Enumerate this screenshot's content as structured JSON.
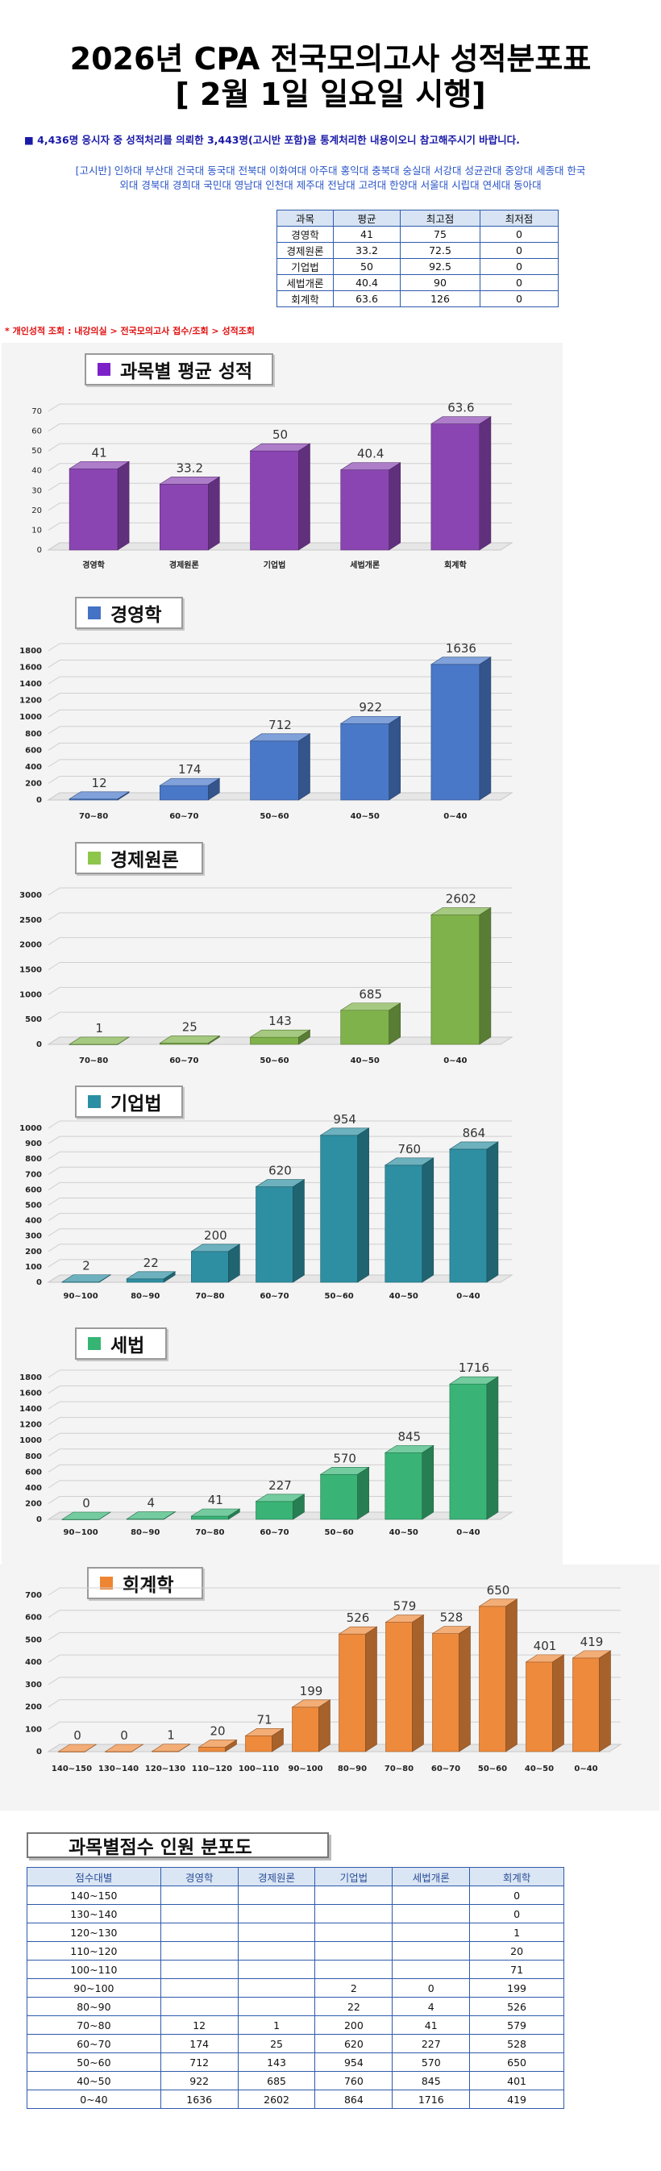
{
  "header": {
    "title_line1": "2026년 CPA 전국모의고사 성적분포표",
    "title_line2": "[ 2월 1일 일요일 시행]",
    "notice": "■ 4,436명 응시자 중 성적처리를 의뢰한 3,443명(고시반 포함)을 통계처리한 내용이오니 참고해주시기 바랍니다.",
    "univ_line1": "[고시반] 인하대 부산대 건국대 동국대 전북대 이화여대 아주대 홍익대 충북대 숭실대 서강대 성균관대 중앙대 세종대 한국",
    "univ_line2": "외대 경북대 경희대 국민대 영남대 인천대 제주대 전남대 고려대 한양대 서울대 시립대 연세대 동아대"
  },
  "summary": {
    "headers": [
      "과목",
      "평균",
      "최고점",
      "최저점"
    ],
    "rows": [
      [
        "경영학",
        "41",
        "75",
        "0"
      ],
      [
        "경제원론",
        "33.2",
        "72.5",
        "0"
      ],
      [
        "기업법",
        "50",
        "92.5",
        "0"
      ],
      [
        "세법개론",
        "40.4",
        "90",
        "0"
      ],
      [
        "회계학",
        "63.6",
        "126",
        "0"
      ]
    ]
  },
  "link_text": "* 개인성적 조회 : 내강의실 > 전국모의고사 접수/조회 > 성적조회",
  "chart_data": [
    {
      "type": "bar",
      "title": "과목별 평균 성적",
      "color": "#8a45b2",
      "categories": [
        "경영학",
        "경제원론",
        "기업법",
        "세법개론",
        "회계학"
      ],
      "values": [
        41,
        33.2,
        50,
        40.4,
        63.6
      ],
      "ylim": [
        0,
        70
      ],
      "yticks": [
        0,
        10,
        20,
        30,
        40,
        50,
        60,
        70
      ],
      "grid": true
    },
    {
      "type": "bar",
      "title": "경영학",
      "color": "#4a78c8",
      "categories": [
        "70~80",
        "60~70",
        "50~60",
        "40~50",
        "0~40"
      ],
      "values": [
        12,
        174,
        712,
        922,
        1636
      ],
      "ylim": [
        0,
        1800
      ],
      "yticks": [
        0,
        200,
        400,
        600,
        800,
        1000,
        1200,
        1400,
        1600,
        1800
      ],
      "grid": true
    },
    {
      "type": "bar",
      "title": "경제원론",
      "color": "#7fb24a",
      "categories": [
        "70~80",
        "60~70",
        "50~60",
        "40~50",
        "0~40"
      ],
      "values": [
        1,
        25,
        143,
        685,
        2602
      ],
      "ylim": [
        0,
        3000
      ],
      "yticks": [
        0,
        500,
        1000,
        1500,
        2000,
        2500,
        3000
      ],
      "grid": true
    },
    {
      "type": "bar",
      "title": "기업법",
      "color": "#2e8fa2",
      "categories": [
        "90~100",
        "80~90",
        "70~80",
        "60~70",
        "50~60",
        "40~50",
        "0~40"
      ],
      "values": [
        2,
        22,
        200,
        620,
        954,
        760,
        864
      ],
      "ylim": [
        0,
        1000
      ],
      "yticks": [
        0,
        100,
        200,
        300,
        400,
        500,
        600,
        700,
        800,
        900,
        1000
      ],
      "grid": true
    },
    {
      "type": "bar",
      "title": "세법",
      "color": "#39b476",
      "categories": [
        "90~100",
        "80~90",
        "70~80",
        "60~70",
        "50~60",
        "40~50",
        "0~40"
      ],
      "values": [
        0,
        4,
        41,
        227,
        570,
        845,
        1716
      ],
      "ylim": [
        0,
        1800
      ],
      "yticks": [
        0,
        200,
        400,
        600,
        800,
        1000,
        1200,
        1400,
        1600,
        1800
      ],
      "grid": true
    },
    {
      "type": "bar",
      "title": "회계학",
      "color": "#ee8a3c",
      "categories": [
        "140~150",
        "130~140",
        "120~130",
        "110~120",
        "100~110",
        "90~100",
        "80~90",
        "70~80",
        "60~70",
        "50~60",
        "40~50",
        "0~40"
      ],
      "values": [
        0,
        0,
        1,
        20,
        71,
        199,
        526,
        579,
        528,
        650,
        401,
        419
      ],
      "ylim": [
        0,
        700
      ],
      "yticks": [
        0,
        100,
        200,
        300,
        400,
        500,
        600,
        700
      ],
      "grid": true
    }
  ],
  "distribution": {
    "title": "과목별점수 인원 분포도",
    "headers": [
      "점수대별",
      "경영학",
      "경제원론",
      "기업법",
      "세법개론",
      "회계학"
    ],
    "rows": [
      [
        "140~150",
        "",
        "",
        "",
        "",
        "0"
      ],
      [
        "130~140",
        "",
        "",
        "",
        "",
        "0"
      ],
      [
        "120~130",
        "",
        "",
        "",
        "",
        "1"
      ],
      [
        "110~120",
        "",
        "",
        "",
        "",
        "20"
      ],
      [
        "100~110",
        "",
        "",
        "",
        "",
        "71"
      ],
      [
        "90~100",
        "",
        "",
        "2",
        "0",
        "199"
      ],
      [
        "80~90",
        "",
        "",
        "22",
        "4",
        "526"
      ],
      [
        "70~80",
        "12",
        "1",
        "200",
        "41",
        "579"
      ],
      [
        "60~70",
        "174",
        "25",
        "620",
        "227",
        "528"
      ],
      [
        "50~60",
        "712",
        "143",
        "954",
        "570",
        "650"
      ],
      [
        "40~50",
        "922",
        "685",
        "760",
        "845",
        "401"
      ],
      [
        "0~40",
        "1636",
        "2602",
        "864",
        "1716",
        "419"
      ]
    ]
  }
}
